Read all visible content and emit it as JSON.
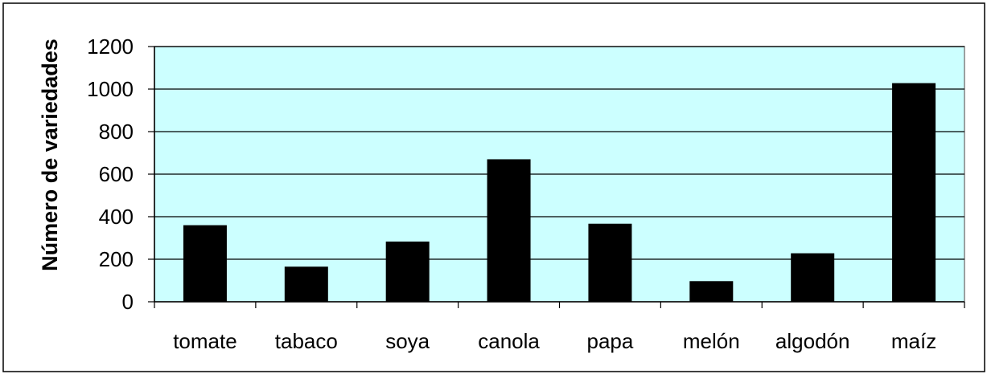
{
  "chart_data": {
    "type": "bar",
    "title": "",
    "xlabel": "",
    "ylabel": "Número de variedades",
    "categories": [
      "tomate",
      "tabaco",
      "soya",
      "canola",
      "papa",
      "melón",
      "algodón",
      "maíz"
    ],
    "values": [
      360,
      165,
      283,
      670,
      367,
      97,
      228,
      1028
    ],
    "ylim": [
      0,
      1200
    ],
    "yticks": [
      0,
      200,
      400,
      600,
      800,
      1000,
      1200
    ],
    "ytick_labels": [
      "0",
      "200",
      "400",
      "600",
      "800",
      "1000",
      "1200"
    ],
    "grid": true,
    "legend": "none",
    "colors": {
      "plot_background": "#ccffff",
      "bar": "#000000",
      "gridline": "#000000",
      "outer_border": "#000000"
    }
  }
}
